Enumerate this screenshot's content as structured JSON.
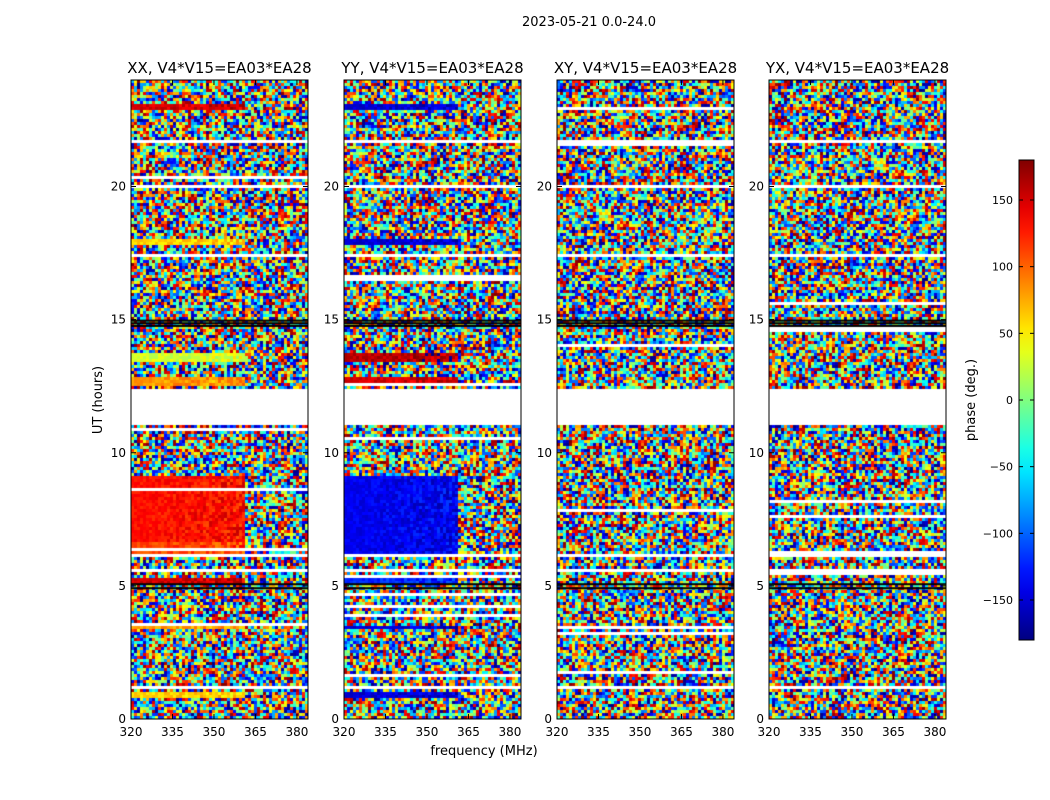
{
  "figure": {
    "suptitle": "2023-05-21 0.0-24.0"
  },
  "chart_data": {
    "type": "heatmap",
    "xlabel": "frequency (MHz)",
    "ylabel": "UT (hours)",
    "xlim": [
      320,
      384
    ],
    "ylim": [
      0,
      24
    ],
    "xticks": [
      320,
      335,
      350,
      365,
      380
    ],
    "yticks": [
      0,
      5,
      10,
      15,
      20
    ],
    "colorbar": {
      "label": "phase (deg.)",
      "range": [
        -180,
        180
      ],
      "ticks": [
        150,
        100,
        50,
        0,
        -50,
        -100,
        -150
      ],
      "tick_labels": [
        "150",
        "100",
        "50",
        "0",
        "−50",
        "−100",
        "−150"
      ],
      "colormap": "jet"
    },
    "panels": [
      {
        "title": "XX, V4*V15=EA03*EA28",
        "pol": "XX"
      },
      {
        "title": "YY, V4*V15=EA03*EA28",
        "pol": "YY"
      },
      {
        "title": "XY, V4*V15=EA03*EA28",
        "pol": "XY"
      },
      {
        "title": "YX, V4*V15=EA03*EA28",
        "pol": "YX"
      }
    ],
    "flagged_time_ranges_hours": [
      [
        11.1,
        12.5
      ],
      [
        17.7,
        17.8
      ],
      [
        17.45,
        17.55
      ],
      [
        6.15,
        6.3
      ],
      [
        5.55,
        5.7
      ],
      [
        1.2,
        1.28
      ],
      [
        21.7,
        21.85
      ],
      [
        20.0,
        20.08
      ]
    ],
    "calibrator_scans_hours": [
      {
        "t": [
          0.8,
          1.1
        ],
        "xx_phase": 60,
        "yy_phase": -150
      },
      {
        "t": [
          3.45,
          3.6
        ],
        "xx_phase": 80,
        "yy_phase": -150
      },
      {
        "t": [
          5.1,
          5.4
        ],
        "xx_phase": 150,
        "yy_phase": -120
      },
      {
        "t": [
          6.3,
          6.7
        ],
        "xx_phase": 110,
        "yy_phase": -140
      },
      {
        "t": [
          6.7,
          9.2
        ],
        "xx_phase": 130,
        "yy_phase": -140
      },
      {
        "t": [
          12.6,
          12.9
        ],
        "xx_phase": 80,
        "yy_phase": 150
      },
      {
        "t": [
          13.5,
          13.8
        ],
        "xx_phase": 30,
        "yy_phase": 160
      },
      {
        "t": [
          17.9,
          18.1
        ],
        "xx_phase": 60,
        "yy_phase": -150
      },
      {
        "t": [
          22.9,
          23.15
        ],
        "xx_phase": 150,
        "yy_phase": -150
      }
    ]
  }
}
